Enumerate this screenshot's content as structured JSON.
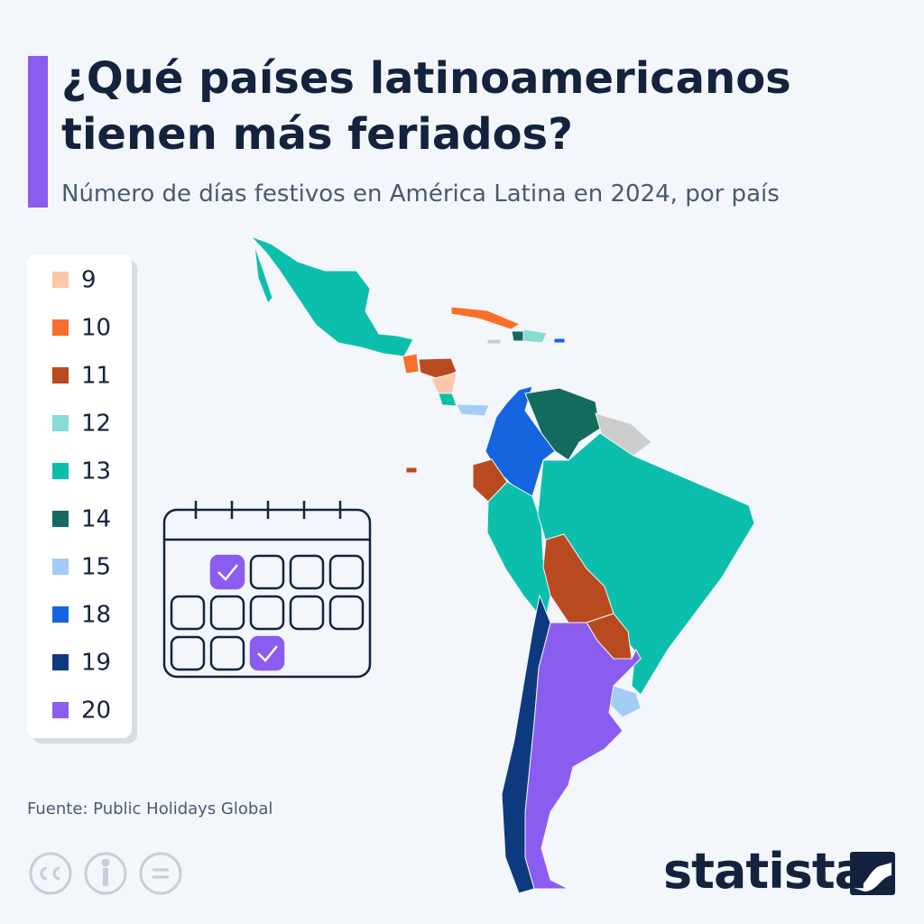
{
  "header": {
    "title": "¿Qué países latinoamericanos tienen más feriados?",
    "subtitle": "Número de días festivos en América Latina en 2024, por país"
  },
  "legend": {
    "items": [
      {
        "label": "9",
        "color": "#fcc8ab"
      },
      {
        "label": "10",
        "color": "#f96e2a"
      },
      {
        "label": "11",
        "color": "#b94a20"
      },
      {
        "label": "12",
        "color": "#86dcd0"
      },
      {
        "label": "13",
        "color": "#0cbfac"
      },
      {
        "label": "14",
        "color": "#156a5f"
      },
      {
        "label": "15",
        "color": "#a3cdf5"
      },
      {
        "label": "18",
        "color": "#1565e0"
      },
      {
        "label": "19",
        "color": "#0d3a7e"
      },
      {
        "label": "20",
        "color": "#8b5cf0"
      }
    ]
  },
  "source": "Fuente: Public Holidays Global",
  "brand": "statista"
}
